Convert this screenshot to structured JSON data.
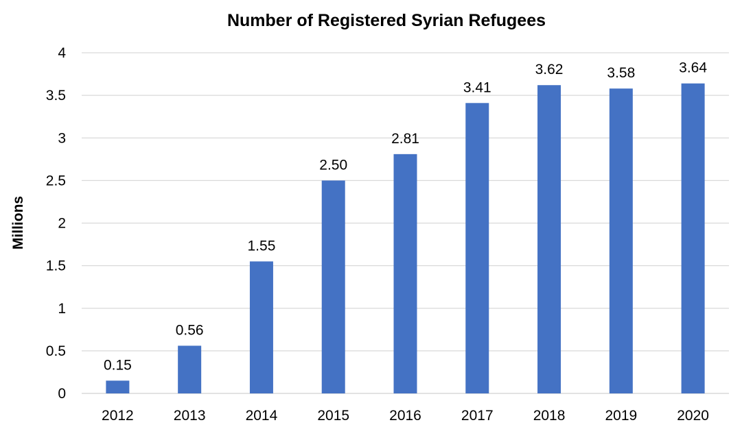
{
  "chart_data": {
    "type": "bar",
    "title": "Number of Registered Syrian Refugees",
    "xlabel": "",
    "ylabel": "Millions",
    "categories": [
      "2012",
      "2013",
      "2014",
      "2015",
      "2016",
      "2017",
      "2018",
      "2019",
      "2020"
    ],
    "values": [
      0.15,
      0.56,
      1.55,
      2.5,
      2.81,
      3.41,
      3.62,
      3.58,
      3.64
    ],
    "data_labels": [
      "0.15",
      "0.56",
      "1.55",
      "2.50",
      "2.81",
      "3.41",
      "3.62",
      "3.58",
      "3.64"
    ],
    "ylim": [
      0,
      4
    ],
    "yticks": [
      0,
      0.5,
      1,
      1.5,
      2,
      2.5,
      3,
      3.5,
      4
    ],
    "ytick_labels": [
      "0",
      "0.5",
      "1",
      "1.5",
      "2",
      "2.5",
      "3",
      "3.5",
      "4"
    ],
    "grid": true,
    "legend": "none",
    "colors": {
      "bar": "#4472c4",
      "grid": "#d9d9d9",
      "text": "#000000",
      "background": "#ffffff"
    }
  }
}
